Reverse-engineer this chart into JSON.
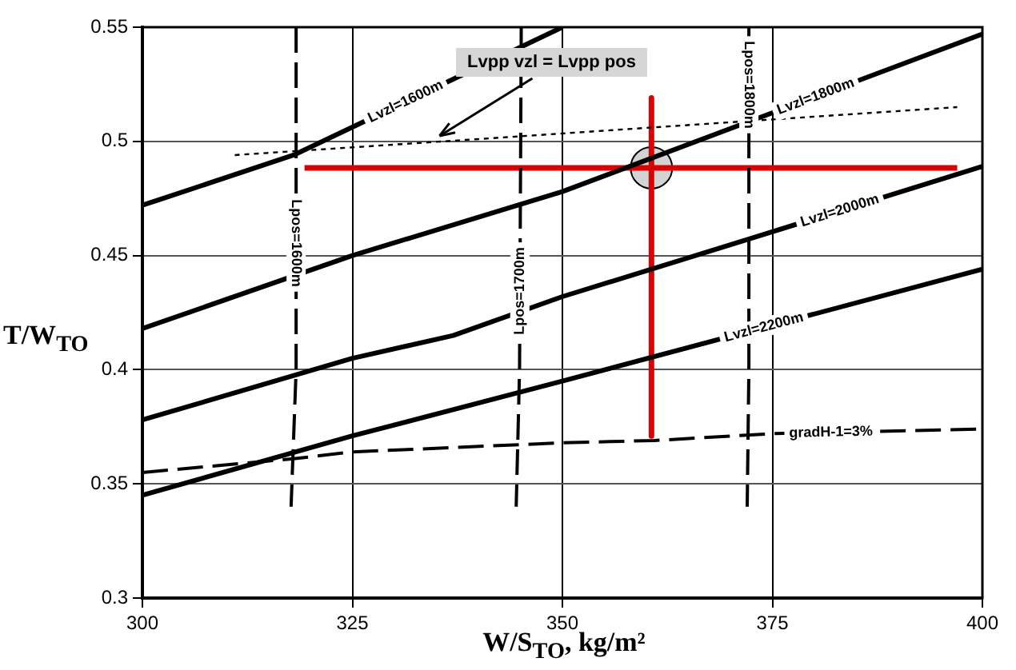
{
  "chart_data": {
    "type": "line",
    "xlabel": "W/S$_{TO}$, kg/m²",
    "ylabel": "T/W$_{TO}$",
    "xlim": [
      300,
      400
    ],
    "xticks": [
      300,
      325,
      350,
      375,
      400
    ],
    "ylim": [
      0.3,
      0.55
    ],
    "yticks": [
      0.3,
      0.35,
      0.4,
      0.45,
      0.5,
      0.55
    ],
    "grid": true,
    "legend": false,
    "marker": "none",
    "series": [
      {
        "name": "Lvzl=1600m",
        "color": "#000000",
        "line_style": "solid",
        "x": [
          300,
          318,
          350
        ],
        "values": [
          0.472,
          0.494,
          0.55
        ]
      },
      {
        "name": "Lvzl=1800m",
        "color": "#000000",
        "line_style": "solid",
        "x": [
          300,
          325,
          350,
          400
        ],
        "values": [
          0.418,
          0.45,
          0.478,
          0.547
        ]
      },
      {
        "name": "Lvzl=2000m",
        "color": "#000000",
        "line_style": "solid",
        "x": [
          300,
          325,
          337,
          350,
          372,
          400
        ],
        "values": [
          0.378,
          0.405,
          0.415,
          0.432,
          0.457,
          0.489
        ]
      },
      {
        "name": "Lvzl=2200m",
        "color": "#000000",
        "line_style": "solid",
        "x": [
          300,
          325,
          350,
          400
        ],
        "values": [
          0.345,
          0.371,
          0.395,
          0.444
        ]
      },
      {
        "name": "gradH-1=3%",
        "color": "#000000",
        "line_style": "dashed",
        "x": [
          300,
          318,
          325,
          350,
          361,
          375,
          400
        ],
        "values": [
          0.355,
          0.361,
          0.364,
          0.368,
          0.369,
          0.372,
          0.374
        ]
      },
      {
        "name": "Lpos=1600m",
        "color": "#000000",
        "line_style": "dashed",
        "x": [
          318.3,
          318.3,
          317.7
        ],
        "values": [
          0.55,
          0.4,
          0.34
        ]
      },
      {
        "name": "Lpos=1700m",
        "color": "#000000",
        "line_style": "dashed",
        "x": [
          345.1,
          344.9,
          344.5
        ],
        "values": [
          0.55,
          0.4,
          0.34
        ]
      },
      {
        "name": "Lpos=1800m",
        "color": "#000000",
        "line_style": "dashed",
        "x": [
          372.2,
          372.2,
          372
        ],
        "values": [
          0.55,
          0.4,
          0.34
        ]
      },
      {
        "color": "#000000",
        "line_style": "dotted",
        "x": [
          311,
          340,
          397
        ],
        "values": [
          0.494,
          0.501,
          0.515
        ]
      },
      {
        "color": "#dd0000",
        "line_style": "solid",
        "x": [
          319.3,
          397
        ],
        "values": [
          0.4884,
          0.4884
        ]
      },
      {
        "color": "#dd0000",
        "line_style": "solid",
        "x": [
          360.6,
          360.6
        ],
        "values": [
          0.519,
          0.371
        ]
      },
      {
        "type": "scatter",
        "color": "#d3d3d3",
        "marker": "circle",
        "x": [
          360.6
        ],
        "values": [
          0.4884
        ]
      }
    ],
    "annotations": [
      {
        "text": "Lvpp vzl = Lvpp pos",
        "x": 335,
        "y": 0.501
      }
    ]
  }
}
